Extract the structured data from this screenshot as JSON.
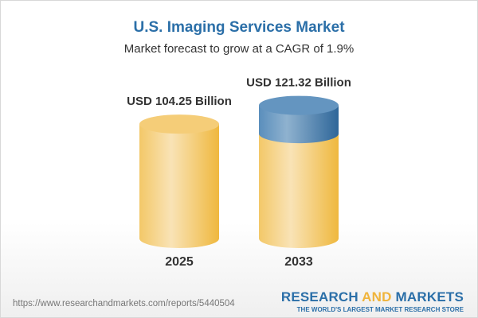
{
  "title": "U.S. Imaging Services Market",
  "subtitle": "Market forecast to grow at a CAGR of 1.9%",
  "chart_data": {
    "type": "bar",
    "style": "cylinder",
    "categories": [
      "2025",
      "2033"
    ],
    "values": [
      104.25,
      121.32
    ],
    "data_labels": [
      "USD 104.25 Billion",
      "USD 121.32 Billion"
    ],
    "unit": "USD Billion",
    "colors": {
      "base": "#f2c25a",
      "growth": "#4f86b5"
    }
  },
  "footer": {
    "url": "https://www.researchandmarkets.com/reports/5440504",
    "logo_part1": "RESEARCH ",
    "logo_part2": "AND",
    "logo_part3": " MARKETS",
    "logo_tagline": "THE WORLD'S LARGEST MARKET RESEARCH STORE"
  }
}
